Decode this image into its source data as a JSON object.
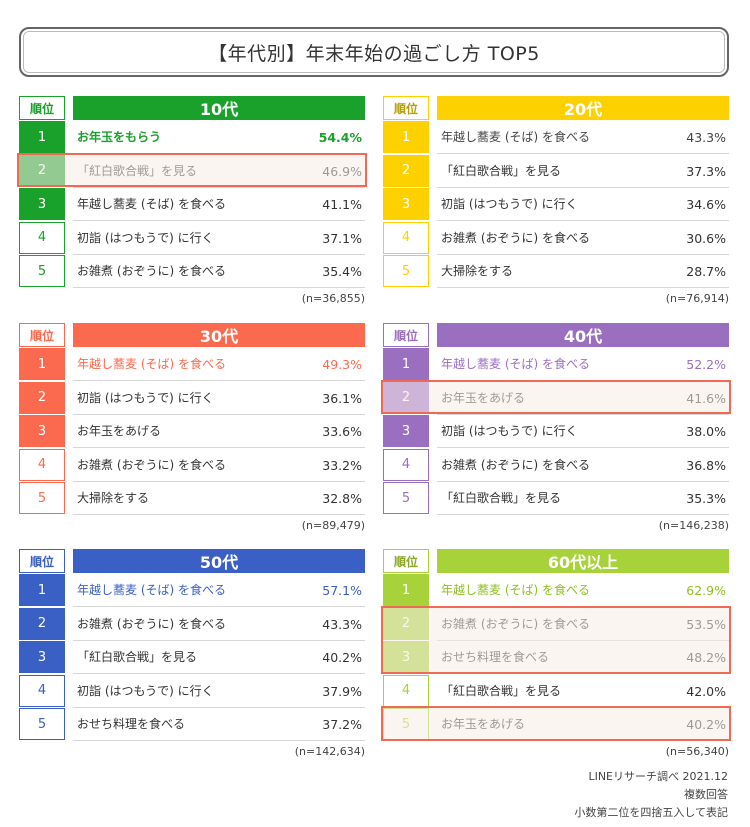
{
  "title": "【年代別】年末年始の過ごし方 TOP5",
  "rank_header": "順位",
  "chart_data": [
    {
      "type": "table",
      "group": "10代",
      "color": "#1aa12b",
      "n": "(n=36,855)",
      "rows": [
        {
          "rank": "1",
          "item": "お年玉をもらう",
          "value": "54.4%"
        },
        {
          "rank": "2",
          "item": "「紅白歌合戦」を見る",
          "value": "46.9%"
        },
        {
          "rank": "3",
          "item": "年越し蕎麦 (そば) を食べる",
          "value": "41.1%"
        },
        {
          "rank": "4",
          "item": "初詣 (はつもうで) に行く",
          "value": "37.1%"
        },
        {
          "rank": "5",
          "item": "お雑煮 (おぞうに) を食べる",
          "value": "35.4%"
        }
      ],
      "highlight": [
        2
      ]
    },
    {
      "type": "table",
      "group": "20代",
      "color": "#fdd000",
      "n": "(n=76,914)",
      "rows": [
        {
          "rank": "1",
          "item": "年越し蕎麦 (そば) を食べる",
          "value": "43.3%"
        },
        {
          "rank": "2",
          "item": "「紅白歌合戦」を見る",
          "value": "37.3%"
        },
        {
          "rank": "3",
          "item": "初詣 (はつもうで) に行く",
          "value": "34.6%"
        },
        {
          "rank": "4",
          "item": "お雑煮 (おぞうに) を食べる",
          "value": "30.6%"
        },
        {
          "rank": "5",
          "item": "大掃除をする",
          "value": "28.7%"
        }
      ],
      "highlight": []
    },
    {
      "type": "table",
      "group": "30代",
      "color": "#fb6a4e",
      "n": "(n=89,479)",
      "rows": [
        {
          "rank": "1",
          "item": "年越し蕎麦 (そば) を食べる",
          "value": "49.3%"
        },
        {
          "rank": "2",
          "item": "初詣 (はつもうで) に行く",
          "value": "36.1%"
        },
        {
          "rank": "3",
          "item": "お年玉をあげる",
          "value": "33.6%"
        },
        {
          "rank": "4",
          "item": "お雑煮 (おぞうに) を食べる",
          "value": "33.2%"
        },
        {
          "rank": "5",
          "item": "大掃除をする",
          "value": "32.8%"
        }
      ],
      "highlight": []
    },
    {
      "type": "table",
      "group": "40代",
      "color": "#9b6fc0",
      "n": "(n=146,238)",
      "rows": [
        {
          "rank": "1",
          "item": "年越し蕎麦 (そば) を食べる",
          "value": "52.2%"
        },
        {
          "rank": "2",
          "item": "お年玉をあげる",
          "value": "41.6%"
        },
        {
          "rank": "3",
          "item": "初詣 (はつもうで) に行く",
          "value": "38.0%"
        },
        {
          "rank": "4",
          "item": "お雑煮 (おぞうに) を食べる",
          "value": "36.8%"
        },
        {
          "rank": "5",
          "item": "「紅白歌合戦」を見る",
          "value": "35.3%"
        }
      ],
      "highlight": [
        2
      ]
    },
    {
      "type": "table",
      "group": "50代",
      "color": "#3a5fc5",
      "n": "(n=142,634)",
      "rows": [
        {
          "rank": "1",
          "item": "年越し蕎麦 (そば) を食べる",
          "value": "57.1%"
        },
        {
          "rank": "2",
          "item": "お雑煮 (おぞうに) を食べる",
          "value": "43.3%"
        },
        {
          "rank": "3",
          "item": "「紅白歌合戦」を見る",
          "value": "40.2%"
        },
        {
          "rank": "4",
          "item": "初詣 (はつもうで) に行く",
          "value": "37.9%"
        },
        {
          "rank": "5",
          "item": "おせち料理を食べる",
          "value": "37.2%"
        }
      ],
      "highlight": []
    },
    {
      "type": "table",
      "group": "60代以上",
      "color": "#a8d23a",
      "n": "(n=56,340)",
      "rows": [
        {
          "rank": "1",
          "item": "年越し蕎麦 (そば) を食べる",
          "value": "62.9%"
        },
        {
          "rank": "2",
          "item": "お雑煮 (おぞうに) を食べる",
          "value": "53.5%"
        },
        {
          "rank": "3",
          "item": "おせち料理を食べる",
          "value": "48.2%"
        },
        {
          "rank": "4",
          "item": "「紅白歌合戦」を見る",
          "value": "42.0%"
        },
        {
          "rank": "5",
          "item": "お年玉をあげる",
          "value": "40.2%"
        }
      ],
      "highlight": [
        2,
        3,
        5
      ]
    }
  ],
  "footer": [
    "LINEリサーチ調べ 2021.12",
    "複数回答",
    "小数第二位を四捨五入して表記"
  ]
}
